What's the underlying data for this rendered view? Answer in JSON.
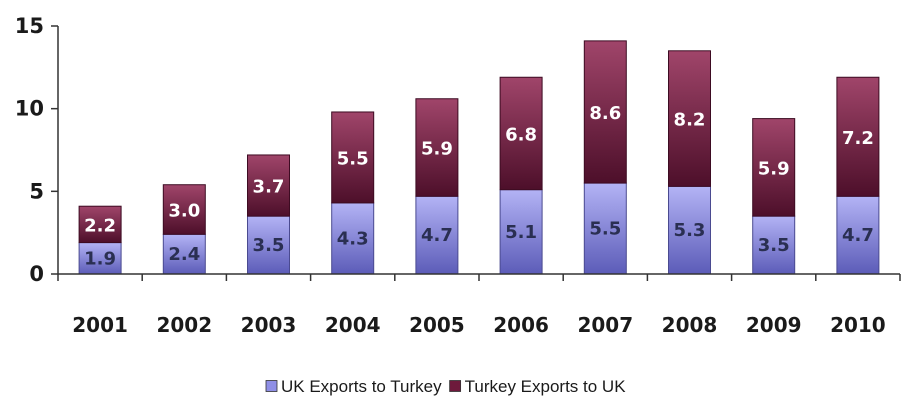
{
  "chart_data": {
    "type": "bar",
    "stacked": true,
    "categories": [
      "2001",
      "2002",
      "2003",
      "2004",
      "2005",
      "2006",
      "2007",
      "2008",
      "2009",
      "2010"
    ],
    "series": [
      {
        "name": "UK Exports to Turkey",
        "values": [
          1.9,
          2.4,
          3.5,
          4.3,
          4.7,
          5.1,
          5.5,
          5.3,
          3.5,
          4.7
        ],
        "labels": [
          "1.9",
          "2.4",
          "3.5",
          "4.3",
          "4.7",
          "5.1",
          "5.5",
          "5.3",
          "3.5",
          "4.7"
        ],
        "color": "#8f8fe6"
      },
      {
        "name": "Turkey Exports to UK",
        "values": [
          2.2,
          3.0,
          3.7,
          5.5,
          5.9,
          6.8,
          8.6,
          8.2,
          5.9,
          7.2
        ],
        "labels": [
          "2.2",
          "3.0",
          "3.7",
          "5.5",
          "5.9",
          "6.8",
          "8.6",
          "8.2",
          "5.9",
          "7.2"
        ],
        "color": "#6e1a3c"
      }
    ],
    "ylim": [
      0,
      15
    ],
    "yticks": [
      "0",
      "5",
      "10",
      "15"
    ],
    "grid": false,
    "legend_position": "bottom-center",
    "title": "",
    "xlabel": "",
    "ylabel": ""
  }
}
